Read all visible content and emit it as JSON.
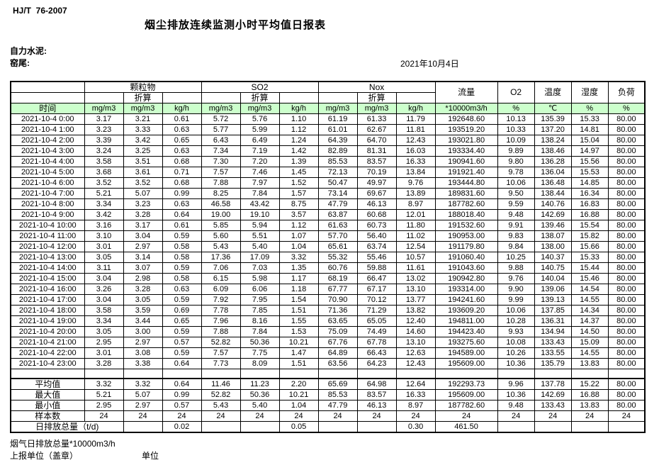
{
  "header": {
    "standard": "HJ/T  76-2007",
    "title": "烟尘排放连续监测小时平均值日报表",
    "company": "自力水泥:",
    "location": "窑尾:",
    "date": "2021年10月4日"
  },
  "table": {
    "time_label": "时间",
    "converted_label": "折算",
    "group_headers": [
      "颗粒物",
      "SO2",
      "Nox"
    ],
    "scalar_headers": [
      "流量",
      "O2",
      "温度",
      "湿度",
      "负荷"
    ],
    "unit_row": [
      "mg/m3",
      "mg/m3",
      "kg/h",
      "mg/m3",
      "mg/m3",
      "kg/h",
      "mg/m3",
      "mg/m3",
      "kg/h",
      "*10000m3/h",
      "%",
      "℃",
      "%",
      "%"
    ],
    "rows": [
      [
        "2021-10-4 0:00",
        "3.17",
        "3.21",
        "0.61",
        "5.72",
        "5.76",
        "1.10",
        "61.19",
        "61.33",
        "11.79",
        "192648.60",
        "10.13",
        "135.39",
        "15.33",
        "80.00"
      ],
      [
        "2021-10-4 1:00",
        "3.23",
        "3.33",
        "0.63",
        "5.77",
        "5.99",
        "1.12",
        "61.01",
        "62.67",
        "11.81",
        "193519.20",
        "10.33",
        "137.20",
        "14.81",
        "80.00"
      ],
      [
        "2021-10-4 2:00",
        "3.39",
        "3.42",
        "0.65",
        "6.43",
        "6.49",
        "1.24",
        "64.39",
        "64.70",
        "12.43",
        "193021.80",
        "10.09",
        "138.24",
        "15.04",
        "80.00"
      ],
      [
        "2021-10-4 3:00",
        "3.24",
        "3.25",
        "0.63",
        "7.34",
        "7.19",
        "1.42",
        "82.89",
        "81.31",
        "16.03",
        "193334.40",
        "9.89",
        "138.46",
        "14.97",
        "80.00"
      ],
      [
        "2021-10-4 4:00",
        "3.58",
        "3.51",
        "0.68",
        "7.30",
        "7.20",
        "1.39",
        "85.53",
        "83.57",
        "16.33",
        "190941.60",
        "9.80",
        "136.28",
        "15.56",
        "80.00"
      ],
      [
        "2021-10-4 5:00",
        "3.68",
        "3.61",
        "0.71",
        "7.57",
        "7.46",
        "1.45",
        "72.13",
        "70.19",
        "13.84",
        "191921.40",
        "9.78",
        "136.04",
        "15.53",
        "80.00"
      ],
      [
        "2021-10-4 6:00",
        "3.52",
        "3.52",
        "0.68",
        "7.88",
        "7.97",
        "1.52",
        "50.47",
        "49.97",
        "9.76",
        "193444.80",
        "10.06",
        "136.48",
        "14.85",
        "80.00"
      ],
      [
        "2021-10-4 7:00",
        "5.21",
        "5.07",
        "0.99",
        "8.25",
        "7.84",
        "1.57",
        "73.14",
        "69.67",
        "13.89",
        "189831.60",
        "9.50",
        "138.44",
        "16.34",
        "80.00"
      ],
      [
        "2021-10-4 8:00",
        "3.34",
        "3.23",
        "0.63",
        "46.58",
        "43.42",
        "8.75",
        "47.79",
        "46.13",
        "8.97",
        "187782.60",
        "9.59",
        "140.76",
        "16.83",
        "80.00"
      ],
      [
        "2021-10-4 9:00",
        "3.42",
        "3.28",
        "0.64",
        "19.00",
        "19.10",
        "3.57",
        "63.87",
        "60.68",
        "12.01",
        "188018.40",
        "9.48",
        "142.69",
        "16.88",
        "80.00"
      ],
      [
        "2021-10-4 10:00",
        "3.16",
        "3.17",
        "0.61",
        "5.85",
        "5.94",
        "1.12",
        "61.63",
        "60.73",
        "11.80",
        "191532.60",
        "9.91",
        "139.46",
        "15.54",
        "80.00"
      ],
      [
        "2021-10-4 11:00",
        "3.10",
        "3.04",
        "0.59",
        "5.60",
        "5.51",
        "1.07",
        "57.70",
        "56.40",
        "11.02",
        "190953.00",
        "9.83",
        "138.07",
        "15.82",
        "80.00"
      ],
      [
        "2021-10-4 12:00",
        "3.01",
        "2.97",
        "0.58",
        "5.43",
        "5.40",
        "1.04",
        "65.61",
        "63.74",
        "12.54",
        "191179.80",
        "9.84",
        "138.00",
        "15.66",
        "80.00"
      ],
      [
        "2021-10-4 13:00",
        "3.05",
        "3.14",
        "0.58",
        "17.36",
        "17.09",
        "3.32",
        "55.32",
        "55.46",
        "10.57",
        "191060.40",
        "10.25",
        "140.37",
        "15.33",
        "80.00"
      ],
      [
        "2021-10-4 14:00",
        "3.11",
        "3.07",
        "0.59",
        "7.06",
        "7.03",
        "1.35",
        "60.76",
        "59.88",
        "11.61",
        "191043.60",
        "9.88",
        "140.75",
        "15.44",
        "80.00"
      ],
      [
        "2021-10-4 15:00",
        "3.04",
        "2.98",
        "0.58",
        "6.15",
        "5.98",
        "1.17",
        "68.19",
        "66.47",
        "13.02",
        "190942.80",
        "9.76",
        "140.04",
        "15.46",
        "80.00"
      ],
      [
        "2021-10-4 16:00",
        "3.26",
        "3.28",
        "0.63",
        "6.09",
        "6.06",
        "1.18",
        "67.77",
        "67.17",
        "13.10",
        "193314.00",
        "9.90",
        "139.06",
        "14.54",
        "80.00"
      ],
      [
        "2021-10-4 17:00",
        "3.04",
        "3.05",
        "0.59",
        "7.92",
        "7.95",
        "1.54",
        "70.90",
        "70.12",
        "13.77",
        "194241.60",
        "9.99",
        "139.13",
        "14.55",
        "80.00"
      ],
      [
        "2021-10-4 18:00",
        "3.58",
        "3.59",
        "0.69",
        "7.78",
        "7.85",
        "1.51",
        "71.36",
        "71.29",
        "13.82",
        "193609.20",
        "10.06",
        "137.85",
        "14.34",
        "80.00"
      ],
      [
        "2021-10-4 19:00",
        "3.34",
        "3.44",
        "0.65",
        "7.96",
        "8.16",
        "1.55",
        "63.65",
        "65.05",
        "12.40",
        "194811.00",
        "10.28",
        "136.31",
        "14.37",
        "80.00"
      ],
      [
        "2021-10-4 20:00",
        "3.05",
        "3.00",
        "0.59",
        "7.88",
        "7.84",
        "1.53",
        "75.09",
        "74.49",
        "14.60",
        "194423.40",
        "9.93",
        "134.94",
        "14.50",
        "80.00"
      ],
      [
        "2021-10-4 21:00",
        "2.95",
        "2.97",
        "0.57",
        "52.82",
        "50.36",
        "10.21",
        "67.76",
        "67.78",
        "13.10",
        "193275.60",
        "10.08",
        "133.43",
        "15.09",
        "80.00"
      ],
      [
        "2021-10-4 22:00",
        "3.01",
        "3.08",
        "0.59",
        "7.57",
        "7.75",
        "1.47",
        "64.89",
        "66.43",
        "12.63",
        "194589.00",
        "10.26",
        "133.55",
        "14.55",
        "80.00"
      ],
      [
        "2021-10-4 23:00",
        "3.28",
        "3.38",
        "0.64",
        "7.73",
        "8.09",
        "1.51",
        "63.56",
        "64.23",
        "12.43",
        "195609.00",
        "10.36",
        "135.79",
        "13.83",
        "80.00"
      ]
    ],
    "summary": [
      {
        "label": "平均值",
        "span": 1,
        "values": [
          "3.32",
          "3.32",
          "0.64",
          "11.46",
          "11.23",
          "2.20",
          "65.69",
          "64.98",
          "12.64",
          "192293.73",
          "9.96",
          "137.78",
          "15.22",
          "80.00"
        ]
      },
      {
        "label": "最大值",
        "span": 1,
        "values": [
          "5.21",
          "5.07",
          "0.99",
          "52.82",
          "50.36",
          "10.21",
          "85.53",
          "83.57",
          "16.33",
          "195609.00",
          "10.36",
          "142.69",
          "16.88",
          "80.00"
        ]
      },
      {
        "label": "最小值",
        "span": 1,
        "values": [
          "2.95",
          "2.97",
          "0.57",
          "5.43",
          "5.40",
          "1.04",
          "47.79",
          "46.13",
          "8.97",
          "187782.60",
          "9.48",
          "133.43",
          "13.83",
          "80.00"
        ]
      },
      {
        "label": "样本数",
        "span": 1,
        "values": [
          "24",
          "24",
          "24",
          "24",
          "24",
          "24",
          "24",
          "24",
          "24",
          "24",
          "24",
          "24",
          "24",
          "24"
        ]
      },
      {
        "label": "日排放总量（t/d)",
        "span": 2,
        "values": [
          "",
          "0.02",
          "",
          "",
          "0.05",
          "",
          "",
          "0.30",
          "461.50",
          "",
          "",
          "",
          ""
        ]
      }
    ]
  },
  "footer": {
    "flow_note": "烟气日排放总量*10000m3/h",
    "report_unit_label": "上报单位（盖章）",
    "unit_label": "单位"
  },
  "colors": {
    "header_green": "#ccffcc",
    "border": "#000000"
  }
}
